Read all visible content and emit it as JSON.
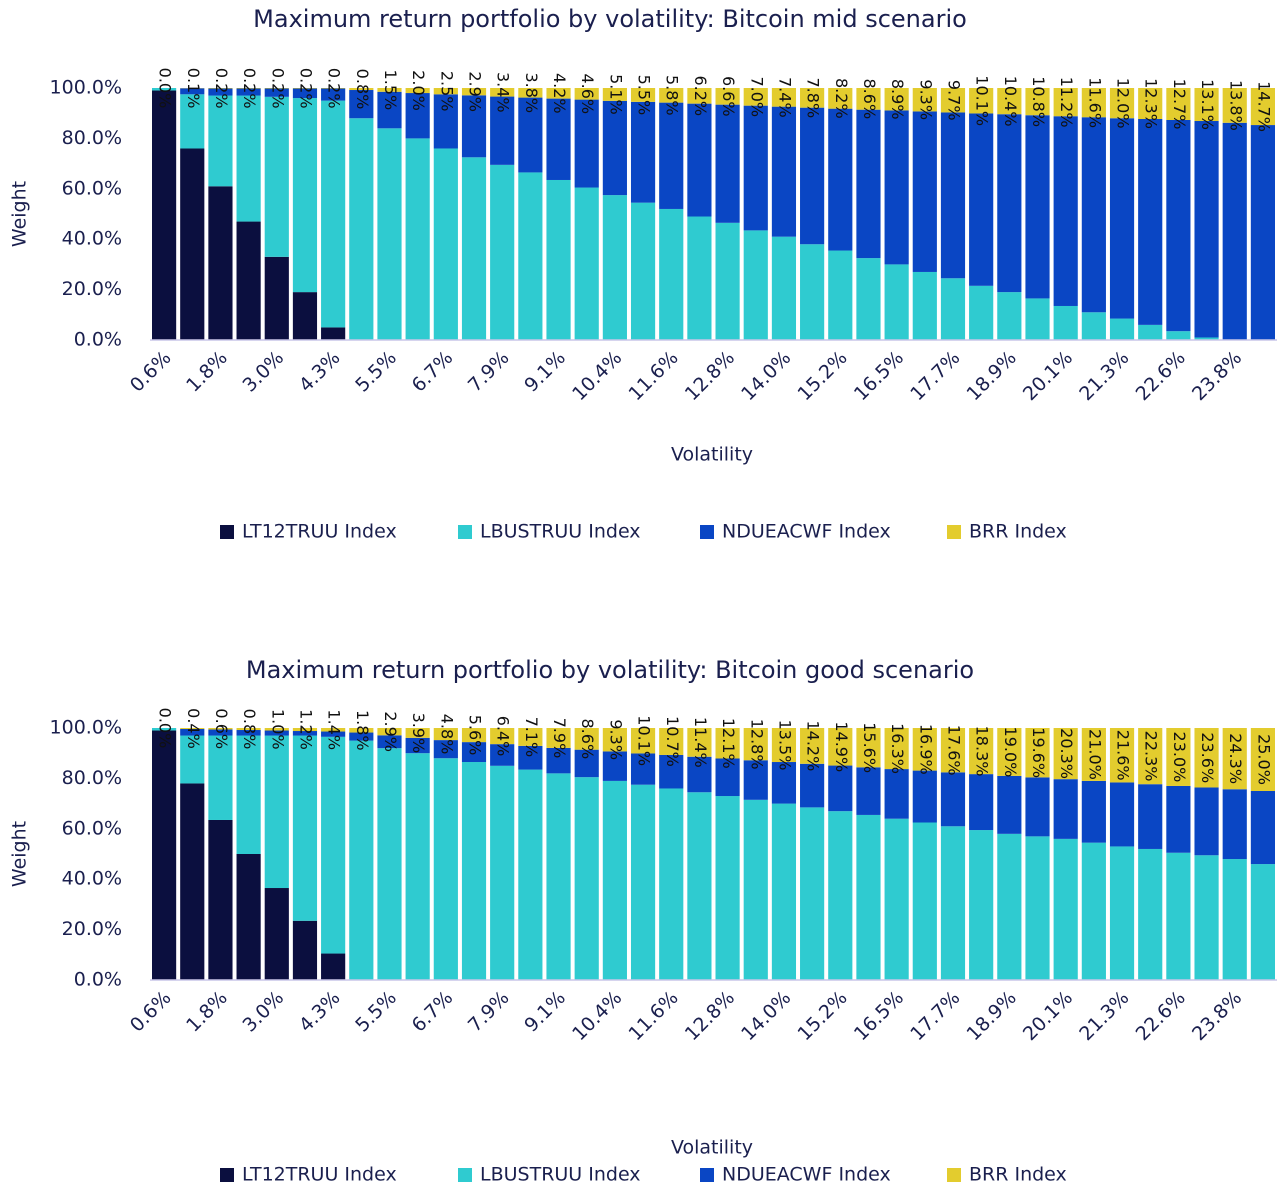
{
  "chart_data": [
    {
      "type": "bar",
      "stacked": true,
      "title": "Maximum return portfolio by volatility: Bitcoin mid scenario",
      "x_label": "Volatility",
      "y_label": "Weight",
      "legend": "bottom",
      "categories": [
        "0.6%",
        null,
        "1.8%",
        null,
        "3.0%",
        null,
        "4.3%",
        null,
        "5.5%",
        null,
        "6.7%",
        null,
        "7.9%",
        null,
        "9.1%",
        null,
        "10.4%",
        null,
        "11.6%",
        null,
        "12.8%",
        null,
        "14.0%",
        null,
        "15.2%",
        null,
        "16.5%",
        null,
        "17.7%",
        null,
        "18.9%",
        null,
        "20.1%",
        null,
        "21.3%",
        null,
        "22.6%",
        null,
        "23.8%",
        null
      ],
      "ylim": [
        0,
        100
      ],
      "yticks": [
        {
          "value": 0,
          "label": "0.0%"
        },
        {
          "value": 20,
          "label": "20.0%"
        },
        {
          "value": 40,
          "label": "40.0%"
        },
        {
          "value": 60,
          "label": "60.0%"
        },
        {
          "value": 80,
          "label": "80.0%"
        },
        {
          "value": 100,
          "label": "100.0%"
        }
      ],
      "series": [
        {
          "name": "LT12TRUU Index",
          "color": "#0b0f3f",
          "values": [
            99,
            76,
            61,
            47,
            33,
            19,
            5,
            0,
            0,
            0,
            0,
            0,
            0,
            0,
            0,
            0,
            0,
            0,
            0,
            0,
            0,
            0,
            0,
            0,
            0,
            0,
            0,
            0,
            0,
            0,
            0,
            0,
            0,
            0,
            0,
            0,
            0,
            0,
            0,
            0
          ]
        },
        {
          "name": "LBUSTRUU Index",
          "color": "#2fcbd0",
          "values": [
            1,
            21.5,
            36,
            50,
            63.5,
            77,
            90,
            88,
            84,
            80,
            76,
            72.5,
            69.5,
            66.5,
            63.5,
            60.5,
            57.5,
            54.5,
            52,
            49,
            46.5,
            43.5,
            41,
            38,
            35.5,
            32.5,
            30,
            27,
            24.5,
            21.5,
            19,
            16.5,
            13.5,
            11,
            8.5,
            6,
            3.5,
            1,
            0,
            0
          ]
        },
        {
          "name": "NDUEACWF Index",
          "color": "#0a46c4",
          "values": [
            0,
            2.4,
            2.8,
            2.8,
            3.3,
            3.8,
            4.8,
            11.2,
            14.5,
            18,
            21.5,
            24.6,
            27.1,
            29.7,
            32.3,
            34.9,
            37.4,
            40,
            42.2,
            44.8,
            46.9,
            49.5,
            51.6,
            54.2,
            56.3,
            58.9,
            61.1,
            63.7,
            65.8,
            68.4,
            70.6,
            72.7,
            75.3,
            77.4,
            79.5,
            81.7,
            83.8,
            85.9,
            86.2,
            85.3
          ]
        },
        {
          "name": "BRR Index",
          "color": "#e3cc2e",
          "values": [
            0,
            0.1,
            0.2,
            0.2,
            0.2,
            0.2,
            0.2,
            0.8,
            1.5,
            2,
            2.5,
            2.9,
            3.4,
            3.8,
            4.2,
            4.6,
            5.1,
            5.5,
            5.8,
            6.2,
            6.6,
            7,
            7.4,
            7.8,
            8.2,
            8.6,
            8.9,
            9.3,
            9.7,
            10.1,
            10.4,
            10.8,
            11.2,
            11.6,
            12,
            12.3,
            12.7,
            13.1,
            13.8,
            14.7
          ],
          "value_labels": [
            "0.0%",
            "0.1%",
            "0.2%",
            "0.2%",
            "0.2%",
            "0.2%",
            "0.2%",
            "0.8%",
            "1.5%",
            "2.0%",
            "2.5%",
            "2.9%",
            "3.4%",
            "3.8%",
            "4.2%",
            "4.6%",
            "5.1%",
            "5.5%",
            "5.8%",
            "6.2%",
            "6.6%",
            "7.0%",
            "7.4%",
            "7.8%",
            "8.2%",
            "8.6%",
            "8.9%",
            "9.3%",
            "9.7%",
            "10.1%",
            "10.4%",
            "10.8%",
            "11.2%",
            "11.6%",
            "12.0%",
            "12.3%",
            "12.7%",
            "13.1%",
            "13.8%",
            "14.7%"
          ]
        }
      ]
    },
    {
      "type": "bar",
      "stacked": true,
      "title": "Maximum return portfolio by volatility: Bitcoin good scenario",
      "x_label": "Volatility",
      "y_label": "Weight",
      "legend": "bottom",
      "categories": [
        "0.6%",
        null,
        "1.8%",
        null,
        "3.0%",
        null,
        "4.3%",
        null,
        "5.5%",
        null,
        "6.7%",
        null,
        "7.9%",
        null,
        "9.1%",
        null,
        "10.4%",
        null,
        "11.6%",
        null,
        "12.8%",
        null,
        "14.0%",
        null,
        "15.2%",
        null,
        "16.5%",
        null,
        "17.7%",
        null,
        "18.9%",
        null,
        "20.1%",
        null,
        "21.3%",
        null,
        "22.6%",
        null,
        "23.8%",
        null
      ],
      "ylim": [
        0,
        100
      ],
      "yticks": [
        {
          "value": 0,
          "label": "0.0%"
        },
        {
          "value": 20,
          "label": "20.0%"
        },
        {
          "value": 40,
          "label": "40.0%"
        },
        {
          "value": 60,
          "label": "60.0%"
        },
        {
          "value": 80,
          "label": "80.0%"
        },
        {
          "value": 100,
          "label": "100.0%"
        }
      ],
      "series": [
        {
          "name": "LT12TRUU Index",
          "color": "#0b0f3f",
          "values": [
            99,
            78,
            63.5,
            50,
            36.5,
            23.5,
            10.5,
            0,
            0,
            0,
            0,
            0,
            0,
            0,
            0,
            0,
            0,
            0,
            0,
            0,
            0,
            0,
            0,
            0,
            0,
            0,
            0,
            0,
            0,
            0,
            0,
            0,
            0,
            0,
            0,
            0,
            0,
            0,
            0,
            0
          ]
        },
        {
          "name": "LBUSTRUU Index",
          "color": "#2fcbd0",
          "values": [
            1,
            19,
            33.5,
            47,
            60.5,
            73.5,
            86,
            95,
            92,
            90,
            88,
            86.5,
            85,
            83.5,
            82,
            80.5,
            79,
            77.5,
            76,
            74.5,
            73,
            71.5,
            70,
            68.5,
            67,
            65.5,
            64,
            62.5,
            61,
            59.5,
            58,
            57,
            56,
            54.5,
            53,
            52,
            50.5,
            49.5,
            48,
            46
          ]
        },
        {
          "name": "NDUEACWF Index",
          "color": "#0a46c4",
          "values": [
            0,
            2.6,
            2.4,
            2.2,
            2,
            1.8,
            2.1,
            3.2,
            5.1,
            6.1,
            7.2,
            7.9,
            8.6,
            9.4,
            10.1,
            10.9,
            11.7,
            12.4,
            13.3,
            14.1,
            14.9,
            15.7,
            16.5,
            17.3,
            18.1,
            18.9,
            19.7,
            20.6,
            21.4,
            22.2,
            23,
            23.4,
            23.7,
            24.5,
            25.4,
            25.7,
            26.5,
            26.9,
            27.7,
            29
          ]
        },
        {
          "name": "BRR Index",
          "color": "#e3cc2e",
          "values": [
            0,
            0.4,
            0.6,
            0.8,
            1,
            1.2,
            1.4,
            1.8,
            2.9,
            3.9,
            4.8,
            5.6,
            6.4,
            7.1,
            7.9,
            8.6,
            9.3,
            10.1,
            10.7,
            11.4,
            12.1,
            12.8,
            13.5,
            14.2,
            14.9,
            15.6,
            16.3,
            16.9,
            17.6,
            18.3,
            19,
            19.6,
            20.3,
            21,
            21.6,
            22.3,
            23,
            23.6,
            24.3,
            25
          ],
          "value_labels": [
            "0.0%",
            "0.4%",
            "0.6%",
            "0.8%",
            "1.0%",
            "1.2%",
            "1.4%",
            "1.8%",
            "2.9%",
            "3.9%",
            "4.8%",
            "5.6%",
            "6.4%",
            "7.1%",
            "7.9%",
            "8.6%",
            "9.3%",
            "10.1%",
            "10.7%",
            "11.4%",
            "12.1%",
            "12.8%",
            "13.5%",
            "14.2%",
            "14.9%",
            "15.6%",
            "16.3%",
            "16.9%",
            "17.6%",
            "18.3%",
            "19.0%",
            "19.6%",
            "20.3%",
            "21.0%",
            "21.6%",
            "22.3%",
            "23.0%",
            "23.6%",
            "24.3%",
            "25.0%"
          ]
        }
      ]
    }
  ]
}
